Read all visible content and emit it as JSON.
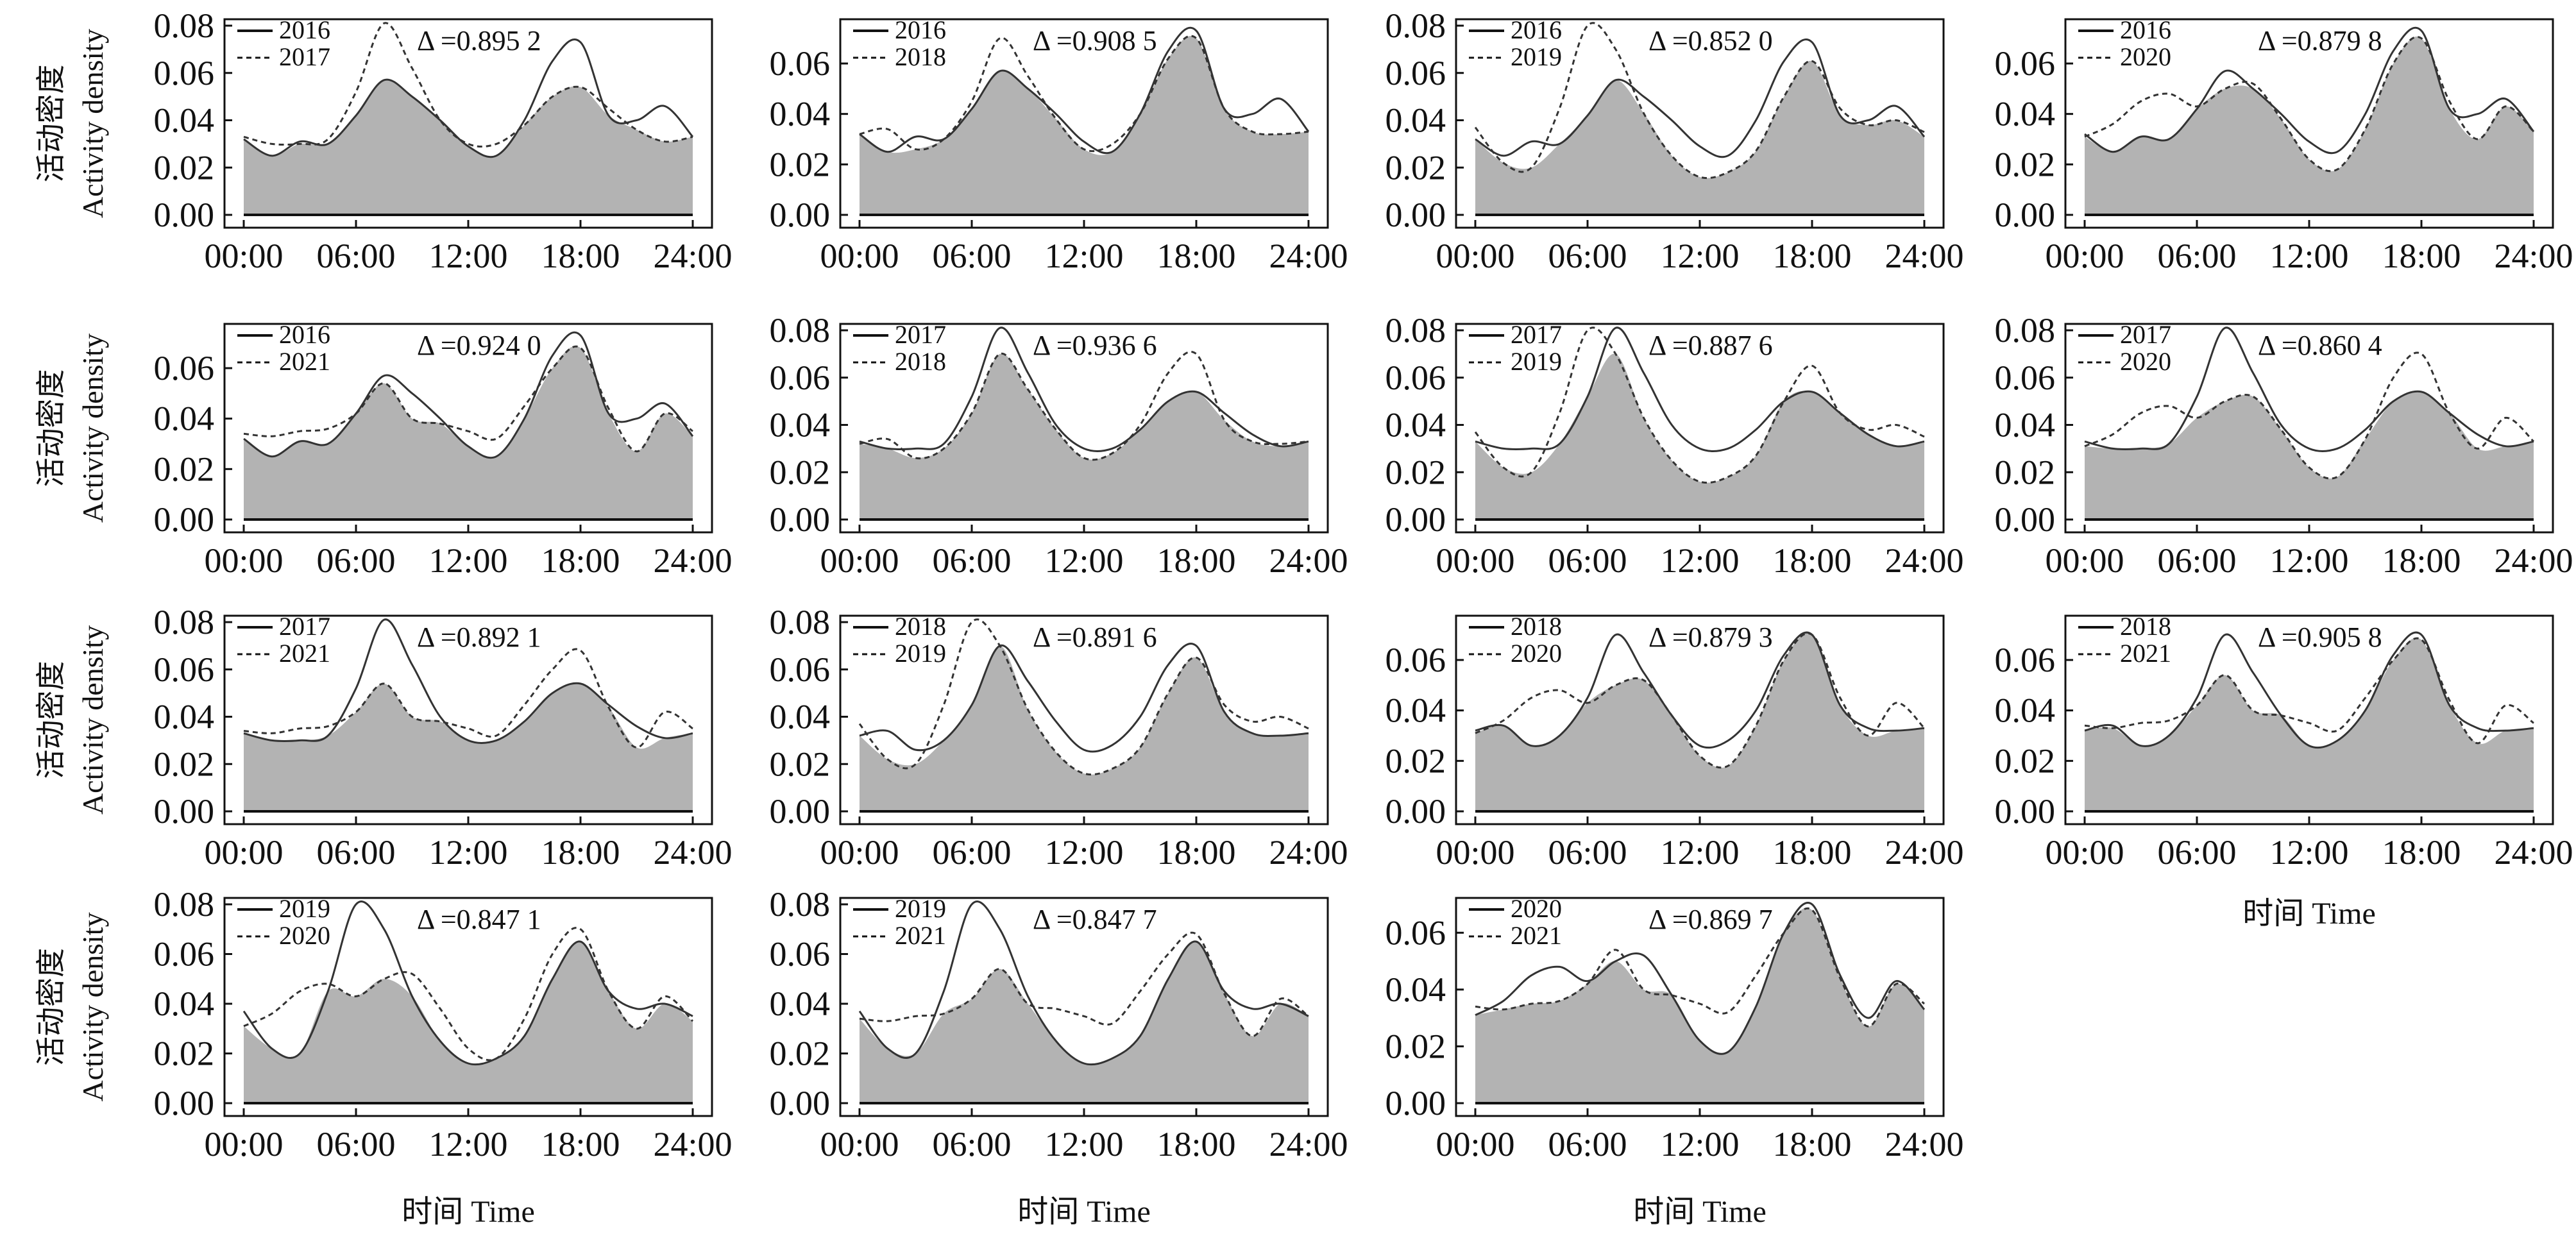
{
  "chart_data": {
    "type": "area",
    "grid": false,
    "shared": {
      "x_ticks": [
        "00:00",
        "06:00",
        "12:00",
        "18:00",
        "24:00"
      ],
      "ylabel_cn": "活动密度",
      "ylabel_en": "Activity density",
      "xlabel": "时间 Time",
      "x_hours": [
        0,
        1.5,
        3,
        4.5,
        6,
        7.5,
        9,
        10.5,
        12,
        13.5,
        15,
        16.5,
        18,
        19.5,
        21,
        22.5,
        24
      ]
    },
    "density_by_year": {
      "2016": [
        0.032,
        0.025,
        0.031,
        0.03,
        0.042,
        0.057,
        0.05,
        0.04,
        0.029,
        0.025,
        0.04,
        0.065,
        0.073,
        0.042,
        0.04,
        0.046,
        0.033
      ],
      "2017": [
        0.033,
        0.03,
        0.03,
        0.032,
        0.052,
        0.081,
        0.062,
        0.04,
        0.03,
        0.03,
        0.038,
        0.05,
        0.054,
        0.045,
        0.036,
        0.031,
        0.033
      ],
      "2018": [
        0.032,
        0.034,
        0.026,
        0.03,
        0.045,
        0.07,
        0.055,
        0.038,
        0.026,
        0.028,
        0.04,
        0.062,
        0.07,
        0.042,
        0.033,
        0.032,
        0.033
      ],
      "2019": [
        0.037,
        0.022,
        0.02,
        0.045,
        0.08,
        0.07,
        0.043,
        0.025,
        0.016,
        0.018,
        0.027,
        0.05,
        0.065,
        0.045,
        0.038,
        0.04,
        0.035
      ],
      "2020": [
        0.031,
        0.036,
        0.045,
        0.048,
        0.043,
        0.05,
        0.052,
        0.038,
        0.022,
        0.018,
        0.034,
        0.06,
        0.07,
        0.045,
        0.03,
        0.043,
        0.033
      ],
      "2021": [
        0.034,
        0.033,
        0.035,
        0.036,
        0.042,
        0.054,
        0.04,
        0.038,
        0.035,
        0.032,
        0.045,
        0.06,
        0.068,
        0.044,
        0.027,
        0.042,
        0.035
      ]
    },
    "panels": [
      {
        "a": "2016",
        "b": "2017",
        "delta": "0.895 2",
        "ylim": [
          0,
          0.08
        ],
        "yticks": [
          "0.00",
          "0.02",
          "0.04",
          "0.06",
          "0.08"
        ]
      },
      {
        "a": "2016",
        "b": "2018",
        "delta": "0.908 5",
        "ylim": [
          0,
          0.075
        ],
        "yticks": [
          "0.00",
          "0.02",
          "0.04",
          "0.06"
        ]
      },
      {
        "a": "2016",
        "b": "2019",
        "delta": "0.852 0",
        "ylim": [
          0,
          0.08
        ],
        "yticks": [
          "0.00",
          "0.02",
          "0.04",
          "0.06",
          "0.08"
        ]
      },
      {
        "a": "2016",
        "b": "2020",
        "delta": "0.879 8",
        "ylim": [
          0,
          0.075
        ],
        "yticks": [
          "0.00",
          "0.02",
          "0.04",
          "0.06"
        ]
      },
      {
        "a": "2016",
        "b": "2021",
        "delta": "0.924 0",
        "ylim": [
          0,
          0.075
        ],
        "yticks": [
          "0.00",
          "0.02",
          "0.04",
          "0.06"
        ]
      },
      {
        "a": "2017",
        "b": "2018",
        "delta": "0.936 6",
        "ylim": [
          0,
          0.08
        ],
        "yticks": [
          "0.00",
          "0.02",
          "0.04",
          "0.06",
          "0.08"
        ]
      },
      {
        "a": "2017",
        "b": "2019",
        "delta": "0.887 6",
        "ylim": [
          0,
          0.08
        ],
        "yticks": [
          "0.00",
          "0.02",
          "0.04",
          "0.06",
          "0.08"
        ]
      },
      {
        "a": "2017",
        "b": "2020",
        "delta": "0.860 4",
        "ylim": [
          0,
          0.08
        ],
        "yticks": [
          "0.00",
          "0.02",
          "0.04",
          "0.06",
          "0.08"
        ]
      },
      {
        "a": "2017",
        "b": "2021",
        "delta": "0.892 1",
        "ylim": [
          0,
          0.08
        ],
        "yticks": [
          "0.00",
          "0.02",
          "0.04",
          "0.06",
          "0.08"
        ]
      },
      {
        "a": "2018",
        "b": "2019",
        "delta": "0.891 6",
        "ylim": [
          0,
          0.08
        ],
        "yticks": [
          "0.00",
          "0.02",
          "0.04",
          "0.06",
          "0.08"
        ]
      },
      {
        "a": "2018",
        "b": "2020",
        "delta": "0.879 3",
        "ylim": [
          0,
          0.075
        ],
        "yticks": [
          "0.00",
          "0.02",
          "0.04",
          "0.06"
        ]
      },
      {
        "a": "2018",
        "b": "2021",
        "delta": "0.905 8",
        "ylim": [
          0,
          0.075
        ],
        "yticks": [
          "0.00",
          "0.02",
          "0.04",
          "0.06"
        ]
      },
      {
        "a": "2019",
        "b": "2020",
        "delta": "0.847 1",
        "ylim": [
          0,
          0.08
        ],
        "yticks": [
          "0.00",
          "0.02",
          "0.04",
          "0.06",
          "0.08"
        ]
      },
      {
        "a": "2019",
        "b": "2021",
        "delta": "0.847 7",
        "ylim": [
          0,
          0.08
        ],
        "yticks": [
          "0.00",
          "0.02",
          "0.04",
          "0.06",
          "0.08"
        ]
      },
      {
        "a": "2020",
        "b": "2021",
        "delta": "0.869 7",
        "ylim": [
          0,
          0.07
        ],
        "yticks": [
          "0.00",
          "0.02",
          "0.04",
          "0.06"
        ]
      }
    ],
    "colors": {
      "overlap_fill": "#b3b3b3",
      "line": "#333333",
      "axis": "#111111"
    }
  }
}
